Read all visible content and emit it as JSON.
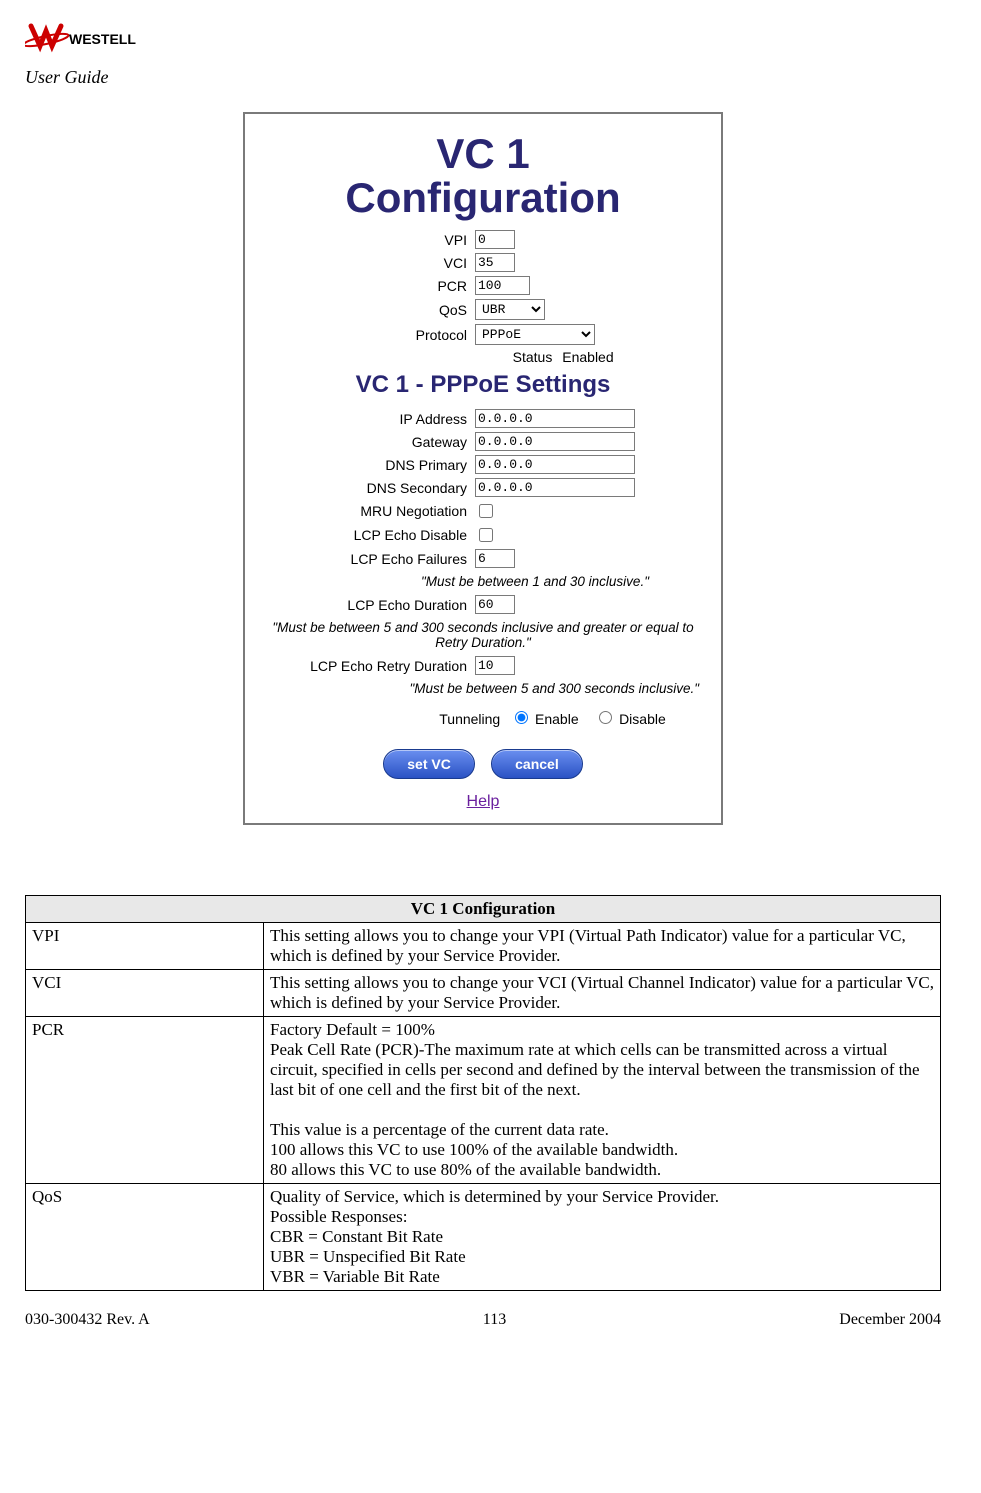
{
  "header": {
    "brand": "WESTELL",
    "subtitle": "User Guide",
    "logo_color": "#cc0000",
    "logo_text_color": "#000000"
  },
  "screenshot": {
    "title_line1": "VC 1",
    "title_line2": "Configuration",
    "title_color": "#292672",
    "fields": {
      "vpi_label": "VPI",
      "vpi_value": "0",
      "vci_label": "VCI",
      "vci_value": "35",
      "pcr_label": "PCR",
      "pcr_value": "100",
      "qos_label": "QoS",
      "qos_value": "UBR",
      "protocol_label": "Protocol",
      "protocol_value": "PPPoE",
      "status_label": "Status",
      "status_value": "Enabled"
    },
    "subsection_title": "VC 1 - PPPoE Settings",
    "pppoe": {
      "ip_label": "IP Address",
      "ip_value": "0.0.0.0",
      "gw_label": "Gateway",
      "gw_value": "0.0.0.0",
      "dns1_label": "DNS Primary",
      "dns1_value": "0.0.0.0",
      "dns2_label": "DNS Secondary",
      "dns2_value": "0.0.0.0",
      "mru_label": "MRU Negotiation",
      "mru_checked": false,
      "lcp_disable_label": "LCP Echo Disable",
      "lcp_disable_checked": false,
      "lcp_fail_label": "LCP Echo Failures",
      "lcp_fail_value": "6",
      "lcp_fail_hint": "\"Must be between 1 and 30 inclusive.\"",
      "lcp_dur_label": "LCP Echo Duration",
      "lcp_dur_value": "60",
      "lcp_dur_hint": "\"Must be between 5 and 300 seconds inclusive and greater or equal to Retry Duration.\"",
      "lcp_retry_label": "LCP Echo Retry Duration",
      "lcp_retry_value": "10",
      "lcp_retry_hint": "\"Must be between 5 and 300 seconds inclusive.\"",
      "tunneling_label": "Tunneling",
      "tunneling_enable": "Enable",
      "tunneling_disable": "Disable",
      "tunneling_selected": "enable"
    },
    "buttons": {
      "set": "set VC",
      "cancel": "cancel"
    },
    "help_text": "Help",
    "help_color": "#6a1f9e",
    "button_bg_top": "#6a8ff0",
    "button_bg_bottom": "#2a52c4"
  },
  "desc_table": {
    "heading": "VC 1 Configuration",
    "heading_bg": "#e8e8e8",
    "rows": [
      {
        "key": "VPI",
        "val": "This setting allows you to change your VPI (Virtual Path Indicator) value for a particular VC, which is defined by your Service Provider."
      },
      {
        "key": "VCI",
        "val": "This setting allows you to change your VCI (Virtual Channel Indicator) value for a particular VC, which is defined by your Service Provider."
      },
      {
        "key": "PCR",
        "val": "Factory Default = 100%\nPeak Cell Rate (PCR)-The maximum rate at which cells can be transmitted across a virtual circuit, specified in cells per second and defined by the interval between the transmission of the last bit of one cell and the first bit of the next.\n\nThis value is a percentage of the current data rate.\n100 allows this VC to use 100% of the available bandwidth.\n80 allows this VC to use 80% of the available bandwidth."
      },
      {
        "key": "QoS",
        "val": "Quality of Service, which is determined by your Service Provider.\nPossible Responses:\nCBR = Constant Bit Rate\nUBR = Unspecified Bit Rate\nVBR = Variable Bit Rate"
      }
    ]
  },
  "footer": {
    "doc_rev": "030-300432 Rev. A",
    "page": "113",
    "date": "December 2004"
  }
}
